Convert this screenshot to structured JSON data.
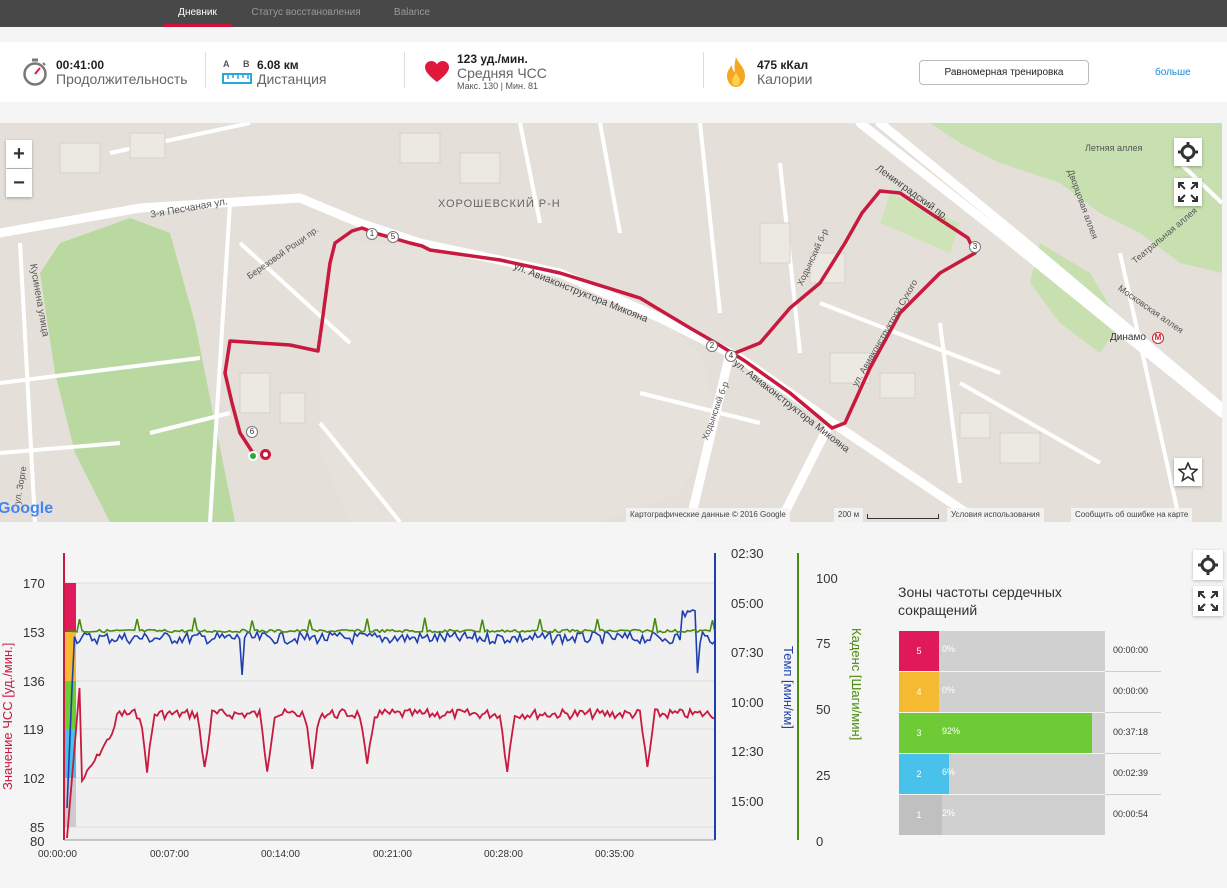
{
  "tabs": [
    {
      "label": "Дневник",
      "active": true
    },
    {
      "label": "Статус восстановления",
      "active": false
    },
    {
      "label": "Balance",
      "active": false
    }
  ],
  "summary": {
    "duration": {
      "value": "00:41:00",
      "label": "Продолжительность",
      "icon": "stopwatch-icon"
    },
    "distance": {
      "a": "A",
      "b": "B",
      "value": "6.08 км",
      "label": "Дистанция",
      "icon": "ruler-icon"
    },
    "heart": {
      "value": "123 уд./мин.",
      "label": "Средняя ЧСС",
      "sub": "Макс. 130  |  Мин. 81",
      "icon": "heart-icon",
      "color": "#e0193a"
    },
    "calories": {
      "value": "475 кКал",
      "label": "Калории",
      "icon": "flame-icon",
      "color": "#f5a623"
    },
    "training_button": "Равномерная тренировка",
    "more_link": "больше"
  },
  "map": {
    "labels": {
      "district": "ХОРОШЕВСКИЙ Р-Н",
      "street1": "3-я Песчаная ул.",
      "street2": "ул. Авиаконструктора Микояна",
      "street3": "ул. Авиаконструктора Микояна",
      "street4": "Ходынский б-р",
      "street5": "Ленинградский пр.",
      "street6": "Кусинена улица",
      "street7": "Березовой Рощи пр.",
      "street8": "ул. Авиаконструктора Сухого",
      "street9": "Летняя аллея",
      "street10": "Дворцовая аллея",
      "street11": "Театральная аллея",
      "street12": "Московская аллея",
      "metro": "Динамо",
      "street13": "Ходынский б-р",
      "street14": "ул. Зорге"
    },
    "markers": [
      "1",
      "2",
      "3",
      "4",
      "5",
      "6"
    ],
    "google": "Google",
    "footer": {
      "data": "Картографические данные © 2016 Google",
      "scale": "200 м",
      "terms": "Условия использования",
      "report": "Сообщить об ошибке на карте"
    },
    "zoom_in": "+",
    "zoom_out": "−",
    "route_color": "#c8193f"
  },
  "chart_data": {
    "type": "line",
    "x_ticks": [
      "00:00:00",
      "00:07:00",
      "00:14:00",
      "00:21:00",
      "00:28:00",
      "00:35:00"
    ],
    "y_left": {
      "label": "Значение ЧСС [уд./мин.]",
      "ticks": [
        "170",
        "153",
        "136",
        "119",
        "102",
        "85",
        "80"
      ],
      "color": "#c8193f"
    },
    "y_pace": {
      "label": "Темп [мин/км]",
      "ticks": [
        "02:30",
        "05:00",
        "07:30",
        "10:00",
        "12:30",
        "15:00"
      ],
      "color": "#1f3fb0"
    },
    "y_cadence": {
      "label": "Каденс [Шаги/мин]",
      "ticks": [
        "100",
        "75",
        "50",
        "25",
        "0"
      ],
      "color": "#4a8a10"
    },
    "zone_bands": [
      "#e0195a",
      "#f5b932",
      "#6ecb35",
      "#48c2ea",
      "#cccccc"
    ],
    "series": [
      {
        "name": "ЧСС",
        "color": "#c8193f"
      },
      {
        "name": "Темп",
        "color": "#1f3fb0"
      },
      {
        "name": "Каденс",
        "color": "#4a8a10"
      }
    ]
  },
  "zones": {
    "title": "Зоны частоты сердечных сокращений",
    "rows": [
      {
        "zone": "5",
        "pct": "0%",
        "fraction": 0.0,
        "time": "00:00:00",
        "color": "#e0195a"
      },
      {
        "zone": "4",
        "pct": "0%",
        "fraction": 0.0,
        "time": "00:00:00",
        "color": "#f5b932"
      },
      {
        "zone": "3",
        "pct": "92%",
        "fraction": 0.92,
        "time": "00:37:18",
        "color": "#6ecb35"
      },
      {
        "zone": "2",
        "pct": "6%",
        "fraction": 0.06,
        "time": "00:02:39",
        "color": "#48c2ea"
      },
      {
        "zone": "1",
        "pct": "2%",
        "fraction": 0.02,
        "time": "00:00:54",
        "color": "#c0c0c0"
      }
    ]
  }
}
